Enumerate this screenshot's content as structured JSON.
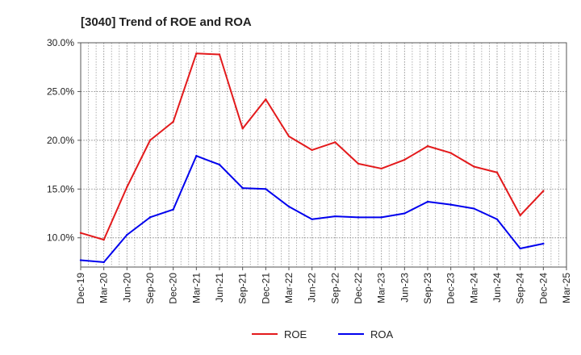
{
  "chart_data": {
    "type": "line",
    "title": "[3040]  Trend of ROE and ROA",
    "xlabel": "",
    "ylabel": "",
    "x": [
      "Dec-19",
      "Mar-20",
      "Jun-20",
      "Sep-20",
      "Dec-20",
      "Mar-21",
      "Jun-21",
      "Sep-21",
      "Dec-21",
      "Mar-22",
      "Jun-22",
      "Sep-22",
      "Dec-22",
      "Mar-23",
      "Jun-23",
      "Sep-23",
      "Dec-23",
      "Mar-24",
      "Jun-24",
      "Sep-24",
      "Dec-24",
      "Mar-25"
    ],
    "y_ticks": [
      "10.0%",
      "15.0%",
      "20.0%",
      "25.0%",
      "30.0%"
    ],
    "ylim": [
      7.0,
      30.0
    ],
    "grid": true,
    "legend_position": "bottom-center",
    "series": [
      {
        "name": "ROE",
        "color": "#e31a1c",
        "values": [
          10.5,
          9.8,
          15.2,
          20.0,
          21.9,
          28.9,
          28.8,
          21.2,
          24.2,
          20.4,
          19.0,
          19.8,
          17.6,
          17.1,
          18.0,
          19.4,
          18.7,
          17.3,
          16.7,
          12.3,
          14.8,
          null
        ]
      },
      {
        "name": "ROA",
        "color": "#0000ee",
        "values": [
          7.7,
          7.5,
          10.3,
          12.1,
          12.9,
          18.4,
          17.5,
          15.1,
          15.0,
          13.2,
          11.9,
          12.2,
          12.1,
          12.1,
          12.5,
          13.7,
          13.4,
          13.0,
          11.9,
          8.9,
          9.4,
          null
        ]
      }
    ]
  }
}
